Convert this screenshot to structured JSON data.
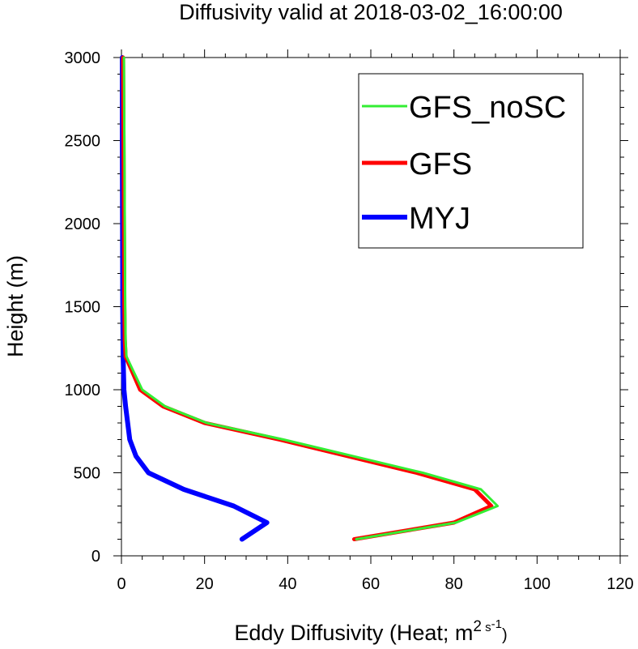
{
  "chart_data": {
    "type": "line",
    "title": "Diffusivity valid at 2018-03-02_16:00:00",
    "xlabel": {
      "main": "Eddy Diffusivity (Heat; m",
      "sup_a": "2",
      "mid": " s",
      "sup_b": "-1",
      "end": ")"
    },
    "ylabel": "Height (m)",
    "xlim": [
      0,
      120
    ],
    "ylim": [
      0,
      3000
    ],
    "xticks": [
      "0",
      "20",
      "40",
      "60",
      "80",
      "100",
      "120"
    ],
    "yticks": [
      "0",
      "500",
      "1000",
      "1500",
      "2000",
      "2500",
      "3000"
    ],
    "legend_position": "top-right",
    "series": [
      {
        "name": "GFS_noSC",
        "color": "#33ee33",
        "x": [
          56.5,
          80.5,
          90.5,
          86.5,
          72.5,
          39,
          20.5,
          10.5,
          5,
          1.2,
          1,
          0.9,
          0.8,
          0.7,
          0.6
        ],
        "y": [
          100,
          200,
          300,
          400,
          500,
          700,
          800,
          900,
          1000,
          1200,
          1300,
          1500,
          2000,
          2500,
          3000
        ]
      },
      {
        "name": "GFS",
        "color": "#ff0000",
        "x": [
          56,
          80,
          89,
          85,
          71,
          38,
          20,
          10,
          4.5,
          1,
          0.8,
          0.7,
          0.6,
          0.5,
          0.4
        ],
        "y": [
          100,
          200,
          300,
          400,
          500,
          700,
          800,
          900,
          1000,
          1200,
          1300,
          1500,
          2000,
          2500,
          3000
        ]
      },
      {
        "name": "MYJ",
        "color": "#0000ff",
        "x": [
          29,
          35,
          27,
          15,
          6.5,
          3.5,
          2,
          1.5,
          1,
          0.6,
          0.4,
          0.3,
          0.25,
          0.2,
          0.2
        ],
        "y": [
          100,
          200,
          300,
          400,
          500,
          600,
          700,
          800,
          900,
          1000,
          1200,
          1500,
          2000,
          2500,
          3000
        ]
      }
    ]
  }
}
